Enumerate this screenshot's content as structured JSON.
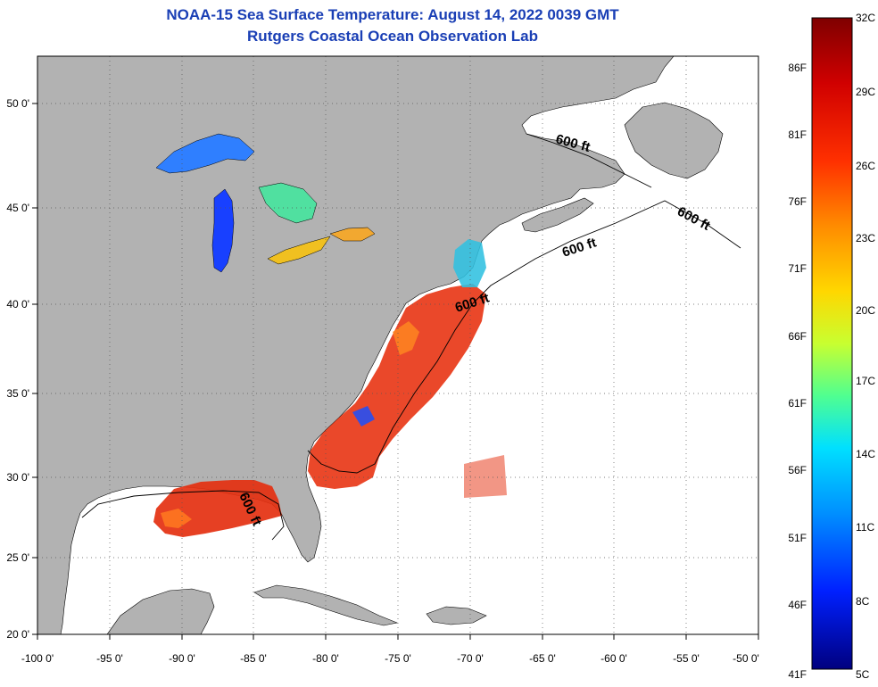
{
  "header": {
    "title": "NOAA-15 Sea Surface Temperature:  August 14, 2022 0039 GMT",
    "subtitle": "Rutgers Coastal Ocean Observation Lab"
  },
  "map": {
    "lon_ticks": [
      "-100 0'",
      "-95 0'",
      "-90 0'",
      "-85 0'",
      "-80 0'",
      "-75 0'",
      "-70 0'",
      "-65 0'",
      "-60 0'",
      "-55 0'",
      "-50 0'"
    ],
    "lat_ticks": [
      "50 0'",
      "45 0'",
      "40 0'",
      "35 0'",
      "30 0'",
      "25 0'",
      "20 0'"
    ],
    "isobath_labels": [
      "600 ft",
      "600 ft",
      "600 ft",
      "600 ft",
      "600 ft"
    ],
    "colors": {
      "land": "#b2b2b2",
      "ocean": "#ffffff",
      "title": "#1a3fb5"
    }
  },
  "colorbar": {
    "celsius_labels": [
      "32C",
      "29C",
      "26C",
      "23C",
      "20C",
      "17C",
      "14C",
      "11C",
      "8C",
      "5C"
    ],
    "fahrenheit_labels": [
      "86F",
      "81F",
      "76F",
      "71F",
      "66F",
      "61F",
      "56F",
      "51F",
      "46F",
      "41F"
    ]
  }
}
